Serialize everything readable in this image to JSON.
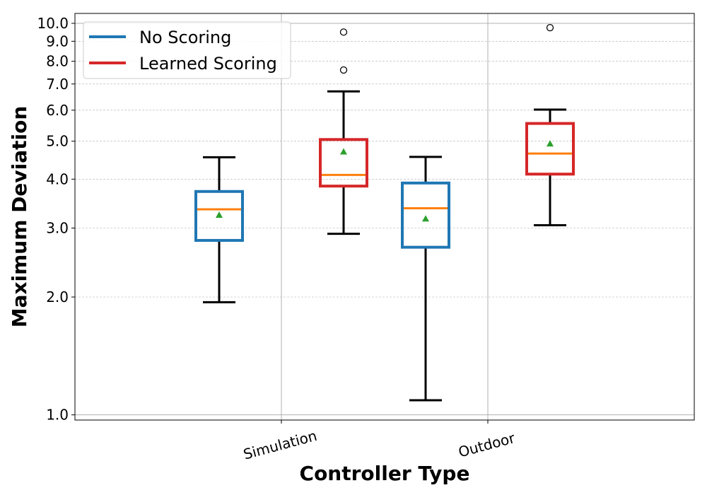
{
  "chart_data": {
    "type": "box",
    "xlabel": "Controller Type",
    "ylabel": "Maximum Deviation",
    "yscale": "log",
    "ylim": [
      0.97,
      10.6
    ],
    "yticks": [
      1.0,
      2.0,
      3.0,
      4.0,
      5.0,
      6.0,
      7.0,
      8.0,
      9.0,
      10.0
    ],
    "ytick_labels": [
      "1.0",
      "2.0",
      "3.0",
      "4.0",
      "5.0",
      "6.0",
      "7.0",
      "8.0",
      "9.0",
      "10.0"
    ],
    "major_grid_values": [
      1.0,
      10.0
    ],
    "categories": [
      "Simulation",
      "Outdoor"
    ],
    "grid": true,
    "legend_position": "top-left",
    "series": [
      {
        "name": "No Scoring",
        "color": "#1f77b4",
        "boxes": [
          {
            "category": "Simulation",
            "whisker_low": 1.94,
            "q1": 2.79,
            "median": 3.35,
            "q3": 3.72,
            "whisker_high": 4.55,
            "mean": 3.24,
            "outliers": []
          },
          {
            "category": "Outdoor",
            "whisker_low": 1.09,
            "q1": 2.68,
            "median": 3.37,
            "q3": 3.91,
            "whisker_high": 4.56,
            "mean": 3.17,
            "outliers": []
          }
        ]
      },
      {
        "name": "Learned Scoring",
        "color": "#d62728",
        "boxes": [
          {
            "category": "Simulation",
            "whisker_low": 2.9,
            "q1": 3.84,
            "median": 4.1,
            "q3": 5.05,
            "whisker_high": 6.7,
            "mean": 4.7,
            "outliers": [
              9.5,
              7.6
            ]
          },
          {
            "category": "Outdoor",
            "whisker_low": 3.05,
            "q1": 4.12,
            "median": 4.65,
            "q3": 5.55,
            "whisker_high": 6.02,
            "mean": 4.93,
            "outliers": [
              9.75
            ]
          }
        ]
      }
    ],
    "median_color": "#ff7f0e",
    "mean_color": "#2ca02c"
  }
}
